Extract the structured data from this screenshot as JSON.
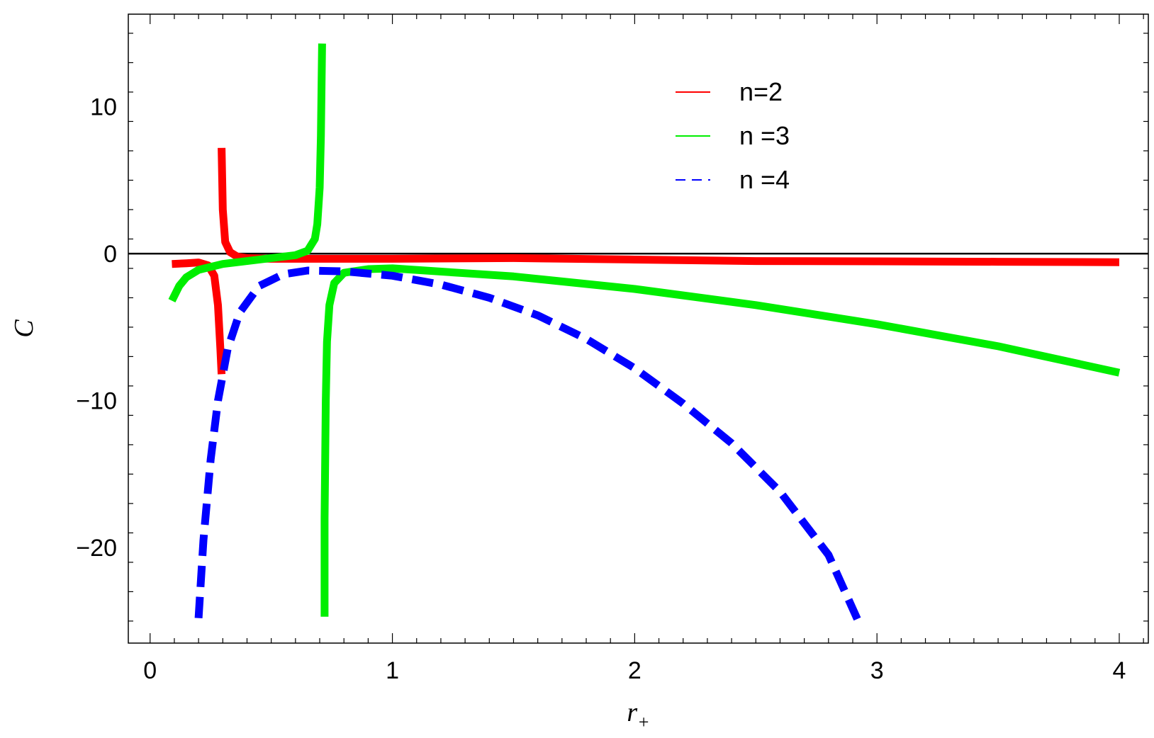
{
  "chart_data": {
    "type": "line",
    "title": "",
    "xlabel": "r",
    "xlabel_subscript": "+",
    "ylabel": "C",
    "xlim": [
      -0.09,
      4.12
    ],
    "ylim": [
      -26.5,
      16.3
    ],
    "x_ticks": [
      0,
      1,
      2,
      3,
      4
    ],
    "x_tick_labels": [
      "0",
      "1",
      "2",
      "3",
      "4"
    ],
    "y_ticks": [
      -20,
      -10,
      0,
      10
    ],
    "y_tick_labels": [
      "−20",
      "−10",
      "0",
      "10"
    ],
    "grid": false,
    "zero_line": true,
    "legend_position": "top-center",
    "series": [
      {
        "name": "n=2",
        "color": "#ff0000",
        "style": "solid",
        "segments": [
          [
            [
              0.09,
              -0.7
            ],
            [
              0.15,
              -0.65
            ],
            [
              0.2,
              -0.6
            ],
            [
              0.24,
              -0.8
            ],
            [
              0.265,
              -1.5
            ],
            [
              0.28,
              -3.5
            ],
            [
              0.29,
              -6.5
            ],
            [
              0.295,
              -8.2
            ]
          ],
          [
            [
              0.295,
              7.2
            ],
            [
              0.3,
              3.0
            ],
            [
              0.31,
              0.8
            ],
            [
              0.33,
              0.1
            ],
            [
              0.36,
              -0.2
            ],
            [
              0.4,
              -0.3
            ],
            [
              0.5,
              -0.35
            ],
            [
              1.0,
              -0.35
            ],
            [
              1.5,
              -0.3
            ],
            [
              2.0,
              -0.4
            ],
            [
              2.5,
              -0.5
            ],
            [
              3.0,
              -0.52
            ],
            [
              3.5,
              -0.55
            ],
            [
              4.0,
              -0.58
            ]
          ]
        ]
      },
      {
        "name": "n =3",
        "color": "#00ee00",
        "style": "solid",
        "segments": [
          [
            [
              0.09,
              -3.2
            ],
            [
              0.12,
              -2.2
            ],
            [
              0.15,
              -1.6
            ],
            [
              0.2,
              -1.1
            ],
            [
              0.3,
              -0.7
            ],
            [
              0.4,
              -0.5
            ],
            [
              0.5,
              -0.3
            ],
            [
              0.6,
              -0.1
            ],
            [
              0.65,
              0.2
            ],
            [
              0.68,
              1.0
            ],
            [
              0.69,
              2.0
            ],
            [
              0.7,
              4.5
            ],
            [
              0.705,
              8.0
            ],
            [
              0.71,
              14.3
            ]
          ],
          [
            [
              0.72,
              -24.7
            ],
            [
              0.72,
              -18.0
            ],
            [
              0.725,
              -10.0
            ],
            [
              0.73,
              -6.0
            ],
            [
              0.74,
              -3.5
            ],
            [
              0.76,
              -2.0
            ],
            [
              0.8,
              -1.3
            ],
            [
              0.9,
              -1.05
            ],
            [
              1.0,
              -1.0
            ],
            [
              1.5,
              -1.55
            ],
            [
              2.0,
              -2.4
            ],
            [
              2.5,
              -3.5
            ],
            [
              3.0,
              -4.8
            ],
            [
              3.5,
              -6.3
            ],
            [
              4.0,
              -8.1
            ]
          ]
        ]
      },
      {
        "name": "n =4",
        "color": "#0000ff",
        "style": "dashed",
        "segments": [
          [
            [
              0.2,
              -24.8
            ],
            [
              0.22,
              -19.5
            ],
            [
              0.25,
              -14.0
            ],
            [
              0.28,
              -10.0
            ],
            [
              0.32,
              -6.5
            ],
            [
              0.37,
              -4.0
            ],
            [
              0.45,
              -2.2
            ],
            [
              0.55,
              -1.4
            ],
            [
              0.65,
              -1.15
            ],
            [
              0.8,
              -1.2
            ],
            [
              1.0,
              -1.5
            ],
            [
              1.2,
              -2.1
            ],
            [
              1.4,
              -3.0
            ],
            [
              1.6,
              -4.2
            ],
            [
              1.8,
              -5.8
            ],
            [
              2.0,
              -7.8
            ],
            [
              2.2,
              -10.2
            ],
            [
              2.4,
              -12.9
            ],
            [
              2.6,
              -16.2
            ],
            [
              2.8,
              -20.5
            ],
            [
              2.92,
              -24.9
            ]
          ]
        ]
      }
    ]
  }
}
